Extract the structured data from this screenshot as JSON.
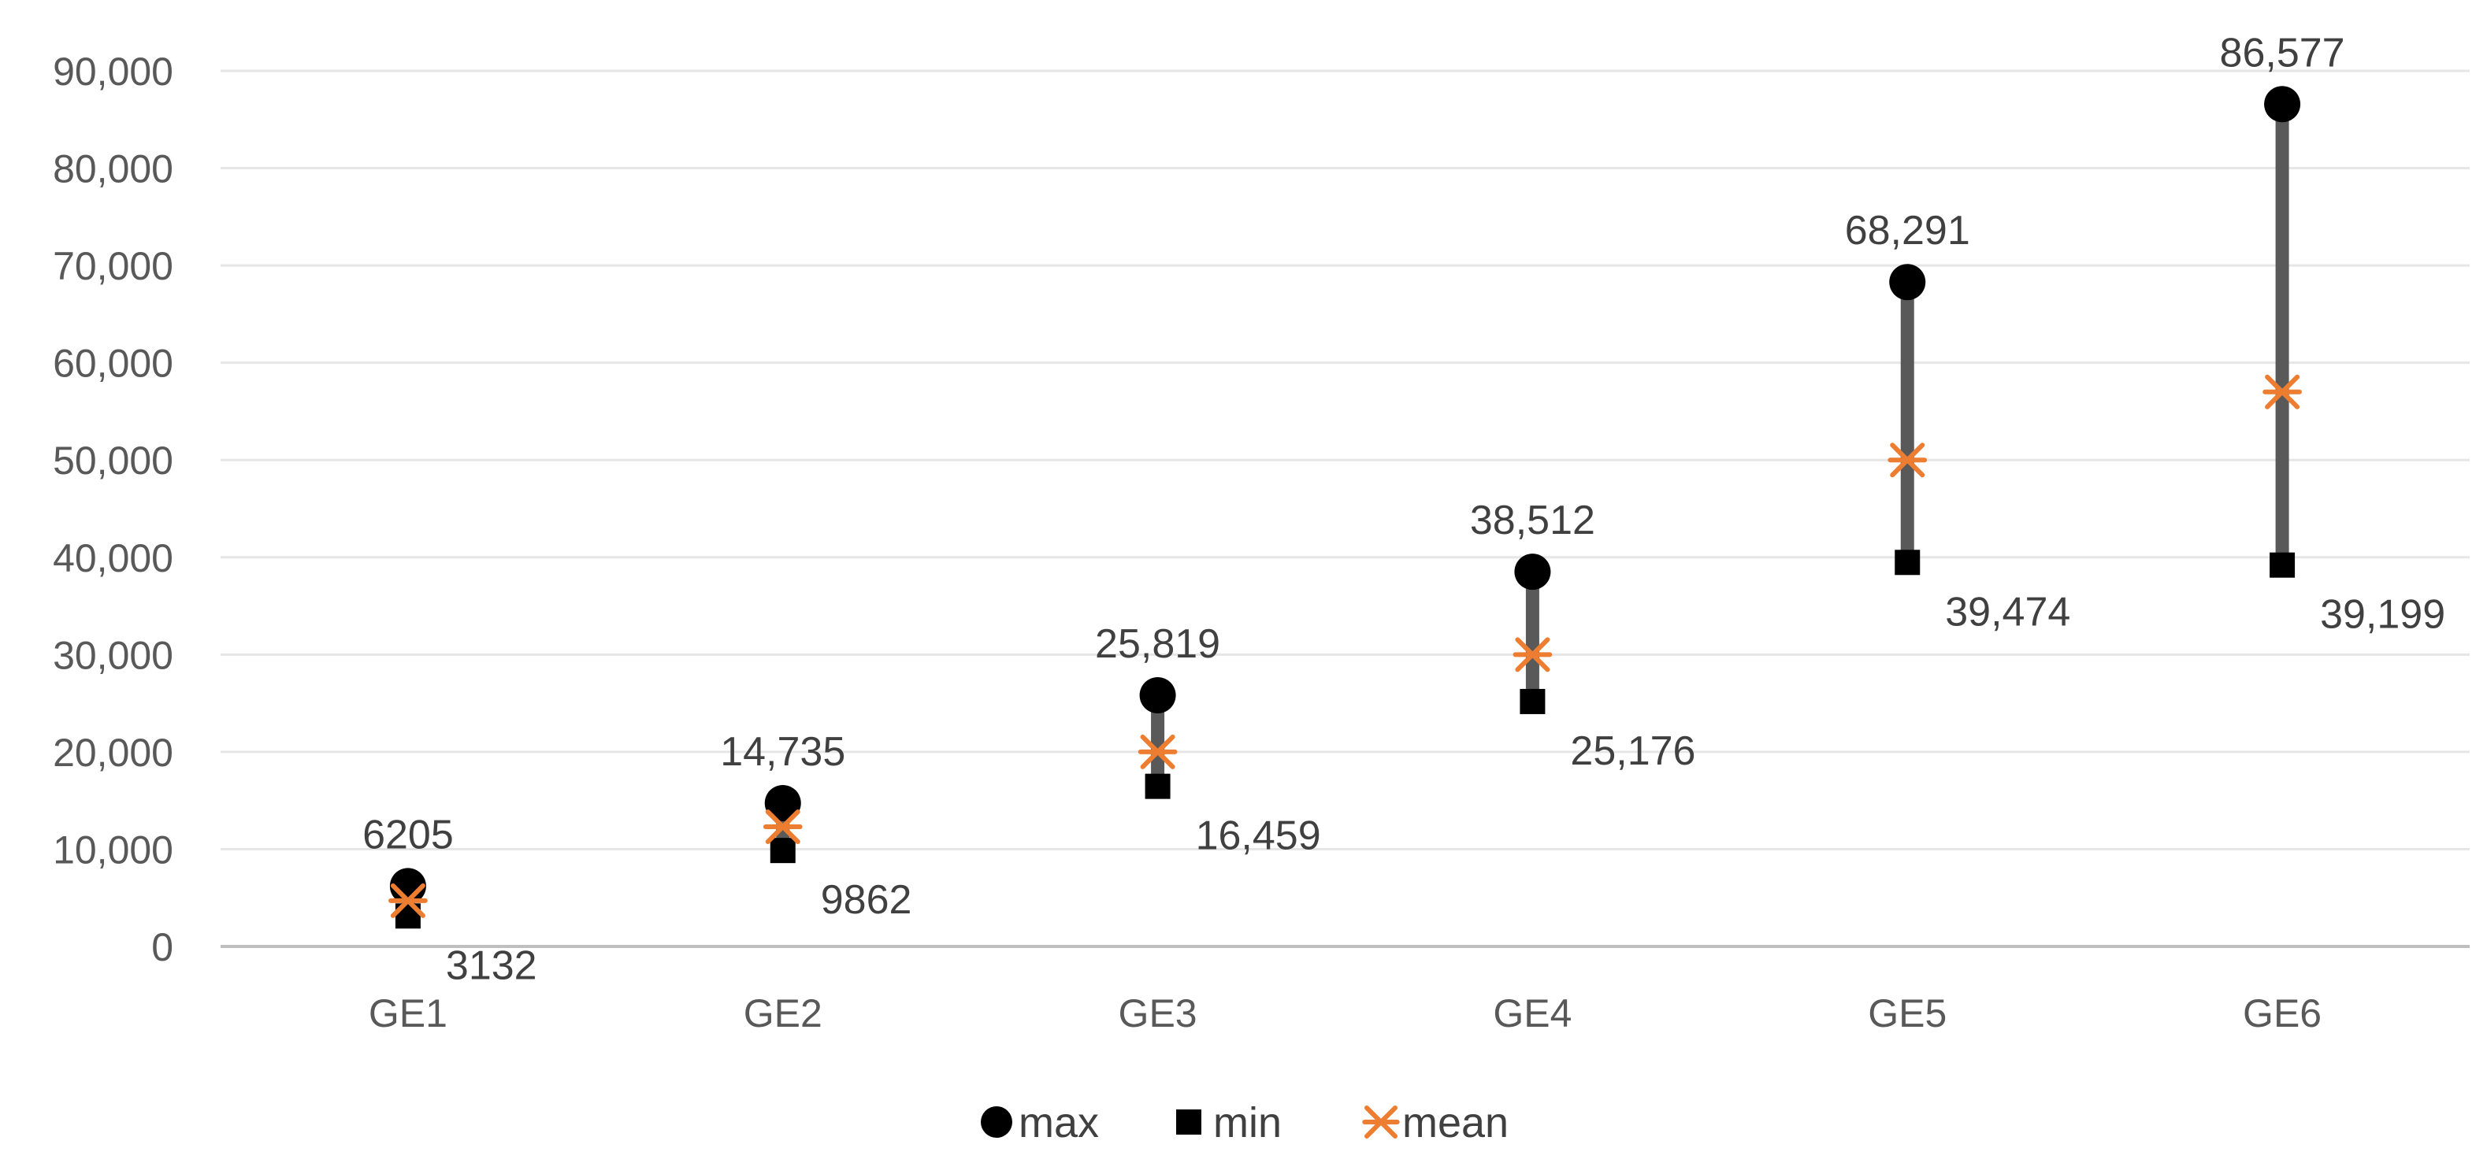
{
  "chart_data": {
    "type": "scatter",
    "title": "",
    "xlabel": "",
    "ylabel": "",
    "categories": [
      "GE1",
      "GE2",
      "GE3",
      "GE4",
      "GE5",
      "GE6"
    ],
    "ylim": [
      0,
      90000
    ],
    "yticks": [
      0,
      10000,
      20000,
      30000,
      40000,
      50000,
      60000,
      70000,
      80000,
      90000
    ],
    "ytick_labels": [
      "0",
      "10,000",
      "20,000",
      "30,000",
      "40,000",
      "50,000",
      "60,000",
      "70,000",
      "80,000",
      "90,000"
    ],
    "grid": true,
    "legend_position": "bottom",
    "series": [
      {
        "name": "max",
        "marker": "circle",
        "color": "#000000",
        "values": [
          6205,
          14735,
          25819,
          38512,
          68291,
          86577
        ],
        "labels": [
          "6205",
          "14,735",
          "25,819",
          "38,512",
          "68,291",
          "86,577"
        ]
      },
      {
        "name": "min",
        "marker": "square",
        "color": "#000000",
        "values": [
          3132,
          9862,
          16459,
          25176,
          39474,
          39199
        ],
        "labels": [
          "3132",
          "9862",
          "16,459",
          "25,176",
          "39,474",
          "39,199"
        ]
      },
      {
        "name": "mean",
        "marker": "asterisk",
        "color": "#ed7d31",
        "values": [
          4700,
          12300,
          20000,
          30000,
          50000,
          57000
        ]
      }
    ],
    "range_line_color": "#595959"
  }
}
